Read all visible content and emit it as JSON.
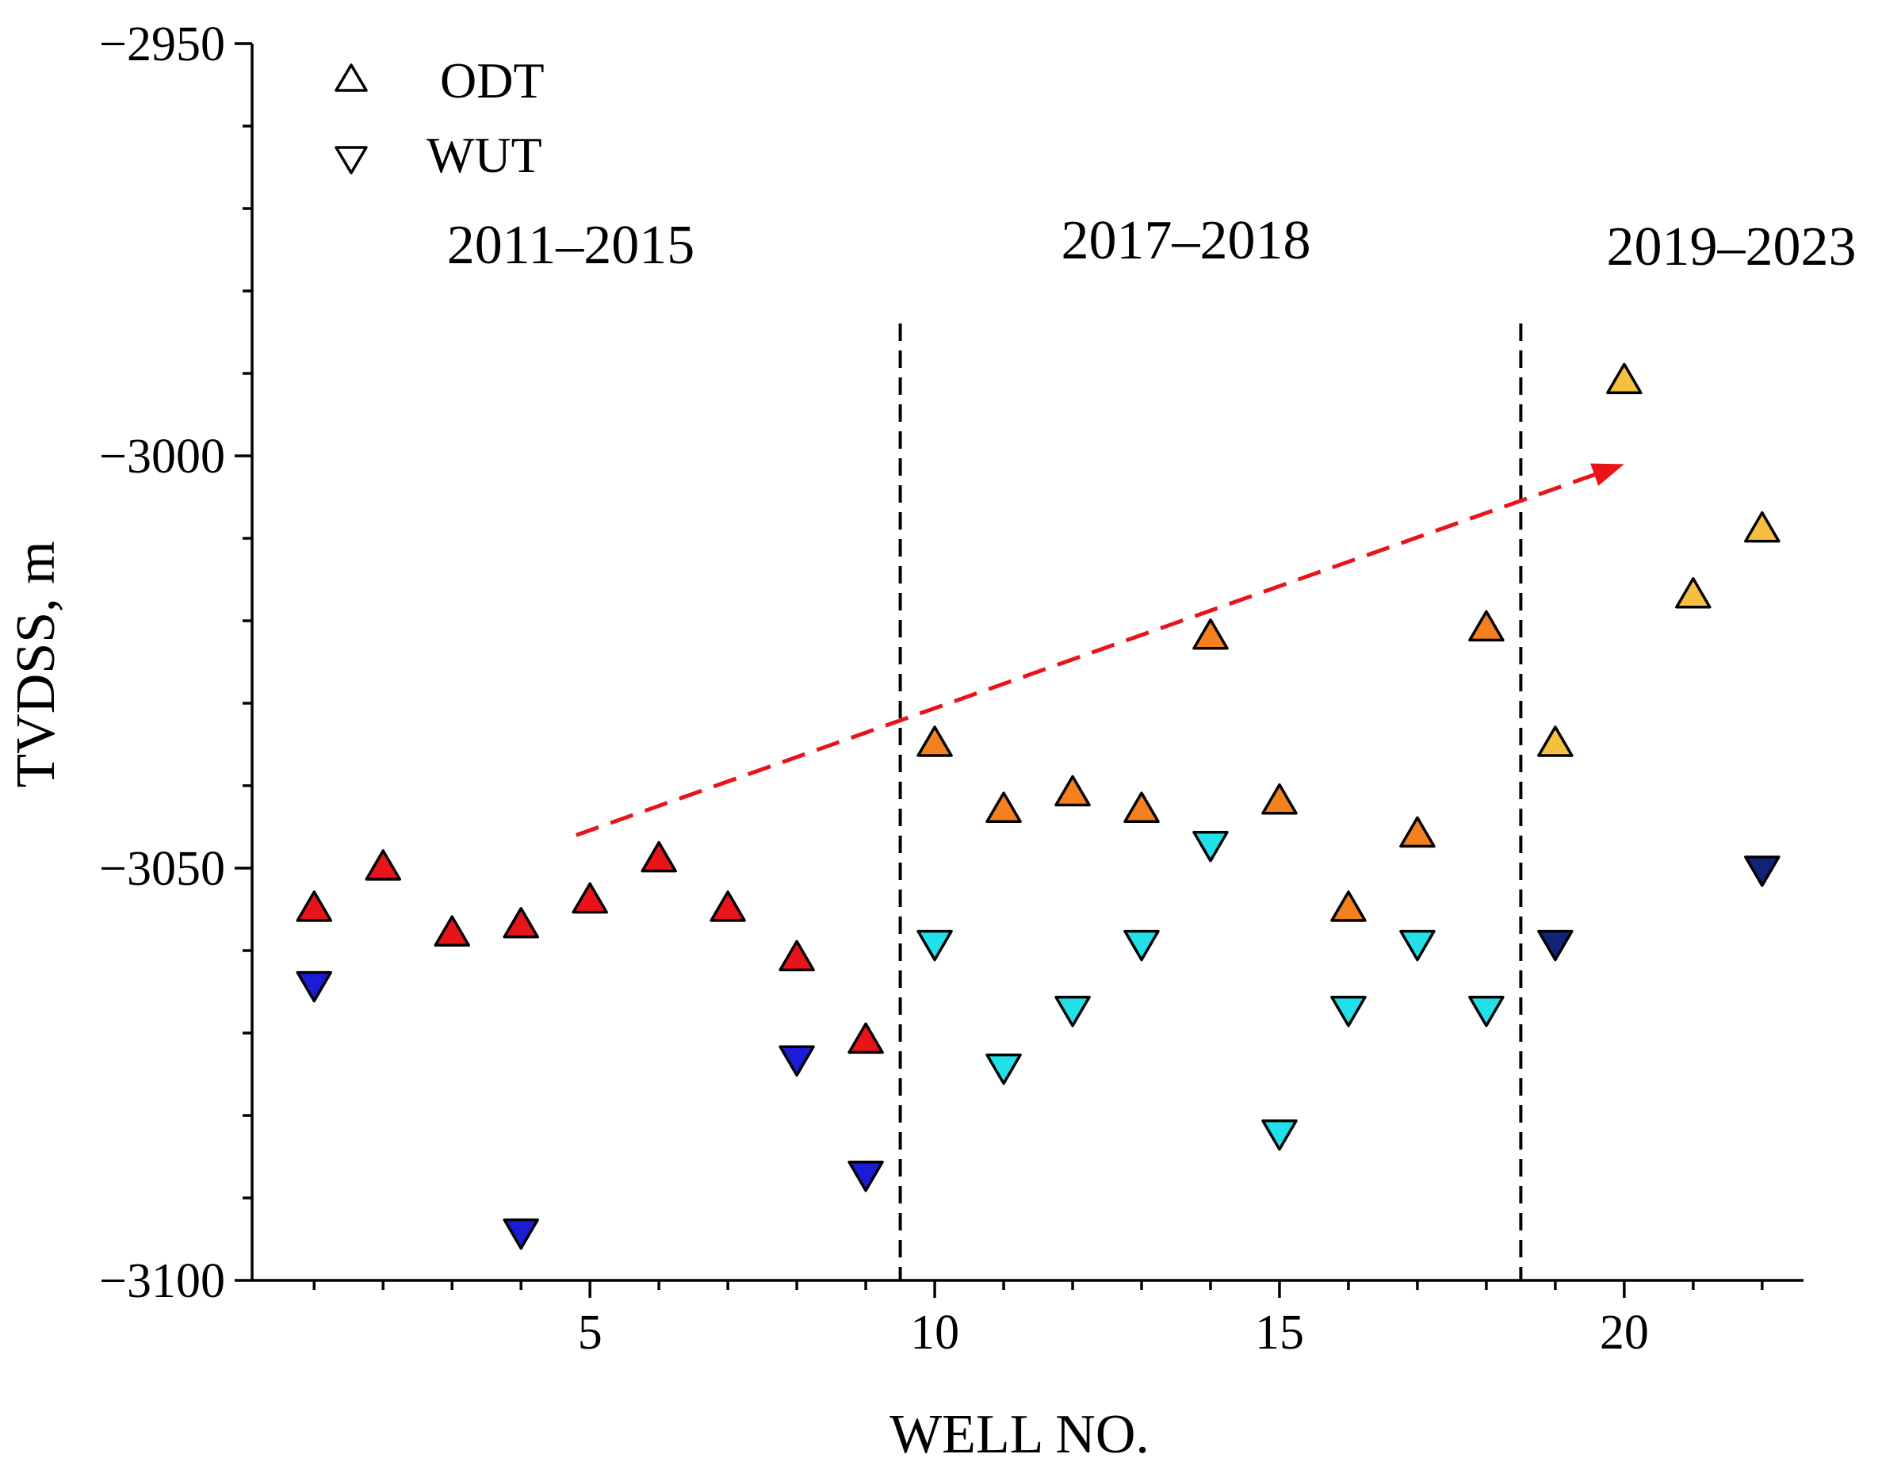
{
  "chart_data": {
    "type": "scatter",
    "xlabel": "WELL NO.",
    "ylabel": "TVDSS, m",
    "xlim": [
      0.1,
      22.6
    ],
    "ylim": [
      -3100,
      -2950
    ],
    "xticks": [
      5,
      10,
      15,
      20
    ],
    "yticks": [
      -2950,
      -3000,
      -3050,
      -3100
    ],
    "xtick_labels": [
      "5",
      "10",
      "15",
      "20"
    ],
    "ytick_labels": [
      "−2950",
      "−3000",
      "−3050",
      "−3100"
    ],
    "legend": {
      "position": "top-left",
      "entries": [
        {
          "label": "ODT",
          "marker": "triangle-up"
        },
        {
          "label": "WUT",
          "marker": "triangle-down"
        }
      ]
    },
    "periods": [
      {
        "label": "2011–2015",
        "x_from": 0.1,
        "x_to": 9.5
      },
      {
        "label": "2017–2018",
        "x_from": 9.5,
        "x_to": 18.5
      },
      {
        "label": "2019–2023",
        "x_from": 18.5,
        "x_to": 22.6
      }
    ],
    "dividers_x": [
      9.5,
      18.5
    ],
    "trend_arrow": {
      "color": "#e8141a",
      "from": [
        4.8,
        -3046
      ],
      "to": [
        20,
        -3001
      ]
    },
    "series": [
      {
        "marker": "triangle-up",
        "color": "#e8141a",
        "x": [
          1,
          2,
          3,
          4,
          5,
          6,
          7,
          8,
          9
        ],
        "y": [
          -3055,
          -3050,
          -3058,
          -3057,
          -3054,
          -3049,
          -3055,
          -3061,
          -3071
        ]
      },
      {
        "marker": "triangle-down",
        "color": "#1c1cd4",
        "x": [
          1,
          4,
          8,
          9
        ],
        "y": [
          -3064,
          -3094,
          -3073,
          -3087
        ]
      },
      {
        "marker": "triangle-up",
        "color": "#f5801f",
        "x": [
          10,
          11,
          12,
          13,
          14,
          15,
          16,
          17,
          18
        ],
        "y": [
          -3035,
          -3043,
          -3041,
          -3043,
          -3022,
          -3042,
          -3055,
          -3046,
          -3021
        ]
      },
      {
        "marker": "triangle-down",
        "color": "#22e0ea",
        "x": [
          10,
          11,
          12,
          13,
          15,
          16,
          17,
          18,
          14
        ],
        "y": [
          -3059,
          -3074,
          -3067,
          -3059,
          -3082,
          -3067,
          -3059,
          -3067,
          -3047
        ]
      },
      {
        "marker": "triangle-up",
        "color": "#f5c040",
        "x": [
          19,
          20,
          21,
          22
        ],
        "y": [
          -3035,
          -2991,
          -3017,
          -3009
        ]
      },
      {
        "marker": "triangle-down",
        "color": "#13237a",
        "x": [
          19,
          22
        ],
        "y": [
          -3059,
          -3050
        ]
      }
    ]
  }
}
